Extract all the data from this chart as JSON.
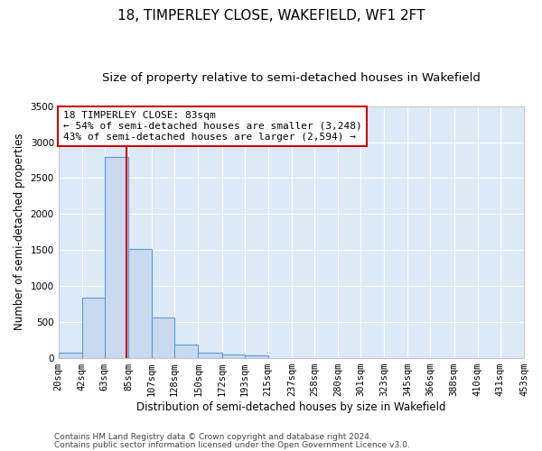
{
  "title": "18, TIMPERLEY CLOSE, WAKEFIELD, WF1 2FT",
  "subtitle": "Size of property relative to semi-detached houses in Wakefield",
  "xlabel": "Distribution of semi-detached houses by size in Wakefield",
  "ylabel": "Number of semi-detached properties",
  "bin_edges": [
    20,
    42,
    63,
    85,
    107,
    128,
    150,
    172,
    193,
    215,
    237,
    258,
    280,
    301,
    323,
    345,
    366,
    388,
    410,
    431,
    453
  ],
  "bar_heights": [
    70,
    840,
    2790,
    1510,
    555,
    185,
    75,
    45,
    30,
    0,
    0,
    0,
    0,
    0,
    0,
    0,
    0,
    0,
    0,
    0
  ],
  "bar_color": "#c9d9f0",
  "bar_edgecolor": "#5b9bd5",
  "tick_labels": [
    "20sqm",
    "42sqm",
    "63sqm",
    "85sqm",
    "107sqm",
    "128sqm",
    "150sqm",
    "172sqm",
    "193sqm",
    "215sqm",
    "237sqm",
    "258sqm",
    "280sqm",
    "301sqm",
    "323sqm",
    "345sqm",
    "366sqm",
    "388sqm",
    "410sqm",
    "431sqm",
    "453sqm"
  ],
  "vline_x": 83,
  "vline_color": "#cc0000",
  "ylim": [
    0,
    3500
  ],
  "yticks": [
    0,
    500,
    1000,
    1500,
    2000,
    2500,
    3000,
    3500
  ],
  "annotation_text": "18 TIMPERLEY CLOSE: 83sqm\n← 54% of semi-detached houses are smaller (3,248)\n43% of semi-detached houses are larger (2,594) →",
  "annotation_box_color": "#ffffff",
  "annotation_box_edgecolor": "#cc0000",
  "footer_line1": "Contains HM Land Registry data © Crown copyright and database right 2024.",
  "footer_line2": "Contains public sector information licensed under the Open Government Licence v3.0.",
  "background_color": "#dce9f7",
  "grid_color": "#ffffff",
  "title_fontsize": 11,
  "subtitle_fontsize": 9.5,
  "axis_label_fontsize": 8.5,
  "tick_fontsize": 7.5,
  "annotation_fontsize": 8,
  "footer_fontsize": 6.5
}
